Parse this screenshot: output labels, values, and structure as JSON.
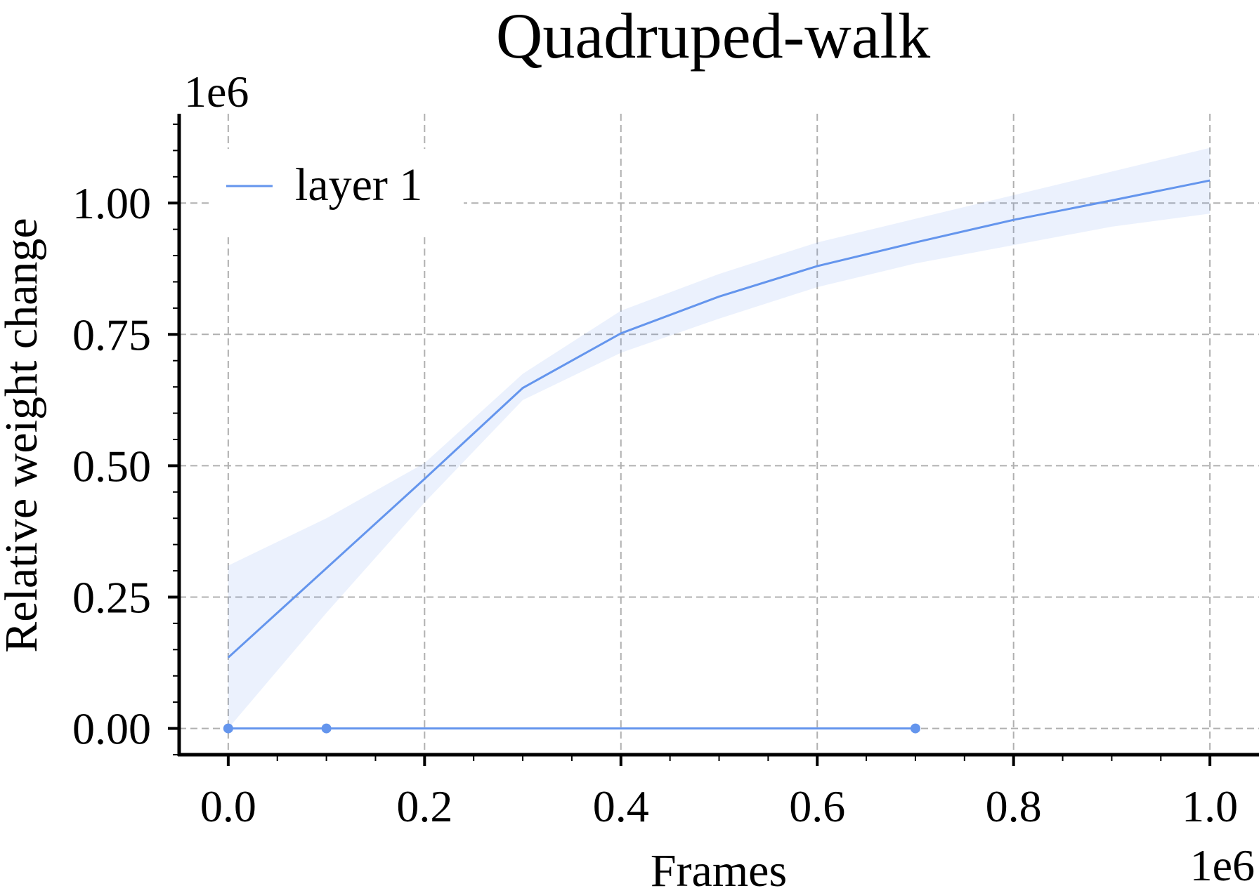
{
  "chart_data": {
    "type": "line",
    "title": "Quadruped-walk",
    "xlabel": "Frames",
    "ylabel": "Relative weight change",
    "x_offset_label": "1e6",
    "y_offset_label": "1e6",
    "xlim": [
      -0.05,
      1.05
    ],
    "ylim": [
      -0.05,
      1.17
    ],
    "x_ticks": [
      0.0,
      0.2,
      0.4,
      0.6,
      0.8,
      1.0
    ],
    "x_tick_labels": [
      "0.0",
      "0.2",
      "0.4",
      "0.6",
      "0.8",
      "1.0"
    ],
    "y_ticks": [
      0.0,
      0.25,
      0.5,
      0.75,
      1.0
    ],
    "y_tick_labels": [
      "0.00",
      "0.25",
      "0.50",
      "0.75",
      "1.00"
    ],
    "grid": true,
    "legend_position": "top-left",
    "series": [
      {
        "name": "layer 1",
        "color": "#6495ED",
        "x": [
          0.0,
          0.1,
          0.2,
          0.3,
          0.4,
          0.5,
          0.6,
          0.7,
          0.8,
          0.9,
          1.0
        ],
        "y": [
          0.135,
          0.305,
          0.475,
          0.648,
          0.752,
          0.822,
          0.88,
          0.925,
          0.968,
          1.005,
          1.043
        ],
        "y_lower": [
          0.0,
          0.22,
          0.43,
          0.625,
          0.715,
          0.78,
          0.84,
          0.885,
          0.92,
          0.955,
          0.98
        ],
        "y_upper": [
          0.31,
          0.4,
          0.505,
          0.675,
          0.795,
          0.865,
          0.925,
          0.97,
          1.015,
          1.06,
          1.105
        ]
      },
      {
        "name": "",
        "color": "#6495ED",
        "markers": true,
        "x": [
          0.0,
          0.1,
          0.7
        ],
        "y": [
          0.0,
          0.0,
          0.0
        ]
      }
    ]
  }
}
